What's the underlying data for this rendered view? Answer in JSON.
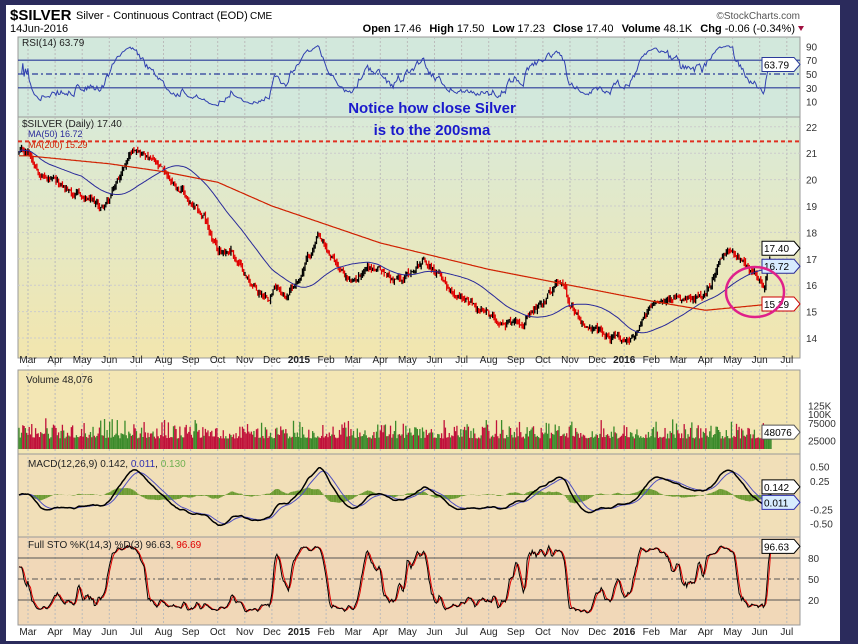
{
  "header": {
    "symbol": "$SILVER",
    "name": "Silver - Continuous Contract (EOD)",
    "exchange": "CME",
    "date": "14Jun-2016",
    "brand": "©StockCharts.com",
    "open_label": "Open",
    "open": "17.46",
    "high_label": "High",
    "high": "17.50",
    "low_label": "Low",
    "low": "17.23",
    "close_label": "Close",
    "close": "17.40",
    "volume_label": "Volume",
    "volume": "48.1K",
    "chg_label": "Chg",
    "chg": "-0.06 (-0.34%)"
  },
  "annotation": {
    "line1": "Notice how close Silver",
    "line2": "is to the 200sma"
  },
  "colors": {
    "up": "#000000",
    "down": "#e00000",
    "ma50": "#2a2a9a",
    "ma200": "#d02000",
    "rsi": "#3040b0",
    "circle": "#e0208a",
    "vol_up": "#3a8a2a",
    "vol_down": "#c0103a",
    "hist": "#6a9a30",
    "sto_d": "#e00000",
    "frame": "#2b2b5c"
  },
  "chart_data": {
    "type": "candlestick",
    "x_ticks": [
      "Mar",
      "Apr",
      "May",
      "Jun",
      "Jul",
      "Aug",
      "Sep",
      "Oct",
      "Nov",
      "Dec",
      "2015",
      "Feb",
      "Mar",
      "Apr",
      "May",
      "Jun",
      "Jul",
      "Aug",
      "Sep",
      "Oct",
      "Nov",
      "Dec",
      "2016",
      "Feb",
      "Mar",
      "Apr",
      "May",
      "Jun",
      "Jul"
    ],
    "price": {
      "label": "$SILVER (Daily) 17.40",
      "last": "17.40",
      "y_ticks": [
        22,
        21,
        20,
        19,
        18,
        17,
        16,
        15,
        14
      ],
      "ylim": [
        13.6,
        22.3
      ],
      "monthly_points": [
        [
          0,
          21.0
        ],
        [
          0.5,
          20.3
        ],
        [
          1,
          19.8
        ],
        [
          1.6,
          19.5
        ],
        [
          2,
          19.3
        ],
        [
          2.7,
          18.9
        ],
        [
          3,
          19.2
        ],
        [
          3.7,
          20.9
        ],
        [
          4,
          21.3
        ],
        [
          4.4,
          20.9
        ],
        [
          5,
          20.2
        ],
        [
          5.7,
          19.6
        ],
        [
          6,
          19.0
        ],
        [
          6.5,
          18.5
        ],
        [
          7,
          17.2
        ],
        [
          7.5,
          17.4
        ],
        [
          8,
          16.4
        ],
        [
          8.5,
          15.7
        ],
        [
          8.9,
          15.7
        ],
        [
          9.2,
          16.1
        ],
        [
          9.5,
          15.6
        ],
        [
          10,
          16.3
        ],
        [
          10.7,
          17.8
        ],
        [
          11,
          17.2
        ],
        [
          11.5,
          16.6
        ],
        [
          12,
          16.0
        ],
        [
          12.5,
          16.8
        ],
        [
          13,
          16.5
        ],
        [
          13.5,
          16.2
        ],
        [
          14,
          16.4
        ],
        [
          14.6,
          17.0
        ],
        [
          15,
          16.6
        ],
        [
          15.5,
          16.0
        ],
        [
          16,
          15.6
        ],
        [
          16.7,
          15.0
        ],
        [
          17,
          14.8
        ],
        [
          17.5,
          14.6
        ],
        [
          18,
          14.7
        ],
        [
          18.5,
          14.8
        ],
        [
          19,
          15.4
        ],
        [
          19.5,
          16.1
        ],
        [
          19.8,
          15.9
        ],
        [
          20,
          15.3
        ],
        [
          20.5,
          14.6
        ],
        [
          21,
          14.2
        ],
        [
          21.5,
          14.0
        ],
        [
          22,
          13.9
        ],
        [
          22.5,
          14.2
        ],
        [
          23,
          15.2
        ],
        [
          23.5,
          15.7
        ],
        [
          24,
          15.4
        ],
        [
          24.5,
          15.3
        ],
        [
          25,
          15.6
        ],
        [
          25.5,
          16.8
        ],
        [
          26,
          17.3
        ],
        [
          26.4,
          17.0
        ],
        [
          27,
          16.2
        ],
        [
          27.2,
          16.0
        ],
        [
          27.45,
          17.4
        ]
      ]
    },
    "ma50": {
      "label": "MA(50) 16.72",
      "last": "16.72"
    },
    "ma200": {
      "label": "MA(200) 15.29",
      "last": "15.29",
      "monthly_points": [
        [
          0,
          20.9
        ],
        [
          3,
          20.6
        ],
        [
          5,
          20.3
        ],
        [
          7,
          19.9
        ],
        [
          9,
          19.0
        ],
        [
          11,
          18.3
        ],
        [
          13,
          17.6
        ],
        [
          15,
          17.1
        ],
        [
          17,
          16.6
        ],
        [
          19,
          16.2
        ],
        [
          21,
          15.8
        ],
        [
          23,
          15.4
        ],
        [
          25,
          15.05
        ],
        [
          27.45,
          15.29
        ]
      ]
    },
    "resistance_line": 21.45,
    "rsi": {
      "label": "RSI(14) 63.79",
      "last": "63.79",
      "y_ticks": [
        90,
        70,
        50,
        30,
        10
      ],
      "levels": [
        70,
        50,
        30
      ]
    },
    "volume": {
      "label": "Volume 48,076",
      "last": "48076",
      "y_ticks": [
        "125K",
        "100K",
        "75000",
        "25000"
      ],
      "y_tick_values": [
        125000,
        100000,
        75000,
        25000
      ]
    },
    "macd": {
      "label": "MACD(12,26,9)",
      "macd": "0.142",
      "signal": "0.011",
      "hist": "0.130",
      "y_ticks": [
        "0.50",
        "0.25",
        "-0.25",
        "-0.50"
      ],
      "y_tick_values": [
        0.5,
        0.25,
        -0.25,
        -0.5
      ]
    },
    "sto": {
      "label": "Full STO %K(14,3) %D(3)",
      "k": "96.63",
      "d": "96.69",
      "y_ticks": [
        80,
        50,
        20
      ]
    }
  }
}
